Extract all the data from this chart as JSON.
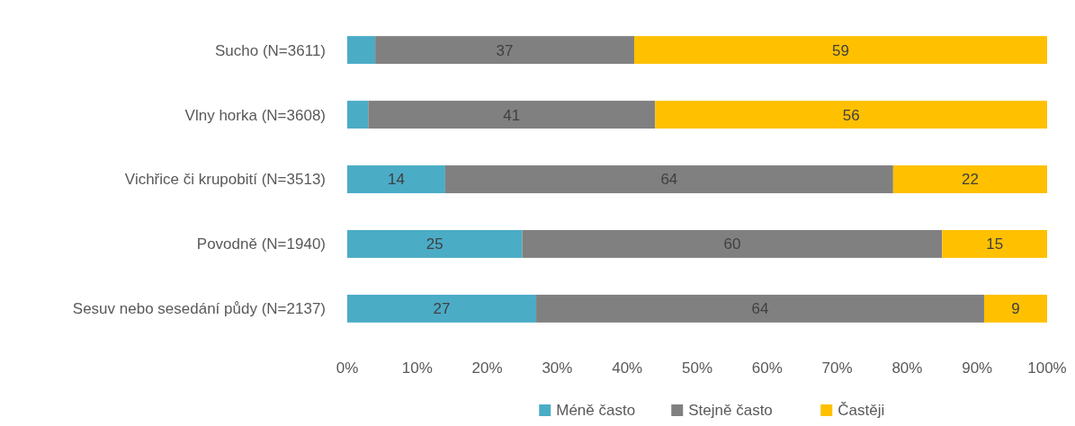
{
  "chart_data": {
    "type": "bar",
    "orientation": "horizontal",
    "stacked": true,
    "categories": [
      "Sucho (N=3611)",
      "Vlny horka (N=3608)",
      "Vichřice či krupobití (N=3513)",
      "Povodně (N=1940)",
      "Sesuv nebo sesedání půdy (N=2137)"
    ],
    "series": [
      {
        "name": "Méně často",
        "color": "#4bacc6",
        "values": [
          4,
          3,
          14,
          25,
          27
        ],
        "value_labels": [
          null,
          null,
          "14",
          "25",
          "27"
        ]
      },
      {
        "name": "Stejně často",
        "color": "#808080",
        "values": [
          37,
          41,
          64,
          60,
          64
        ],
        "value_labels": [
          "37",
          "41",
          "64",
          "60",
          "64"
        ]
      },
      {
        "name": "Častěji",
        "color": "#ffc000",
        "values": [
          59,
          56,
          22,
          15,
          9
        ],
        "value_labels": [
          "59",
          "56",
          "22",
          "15",
          "9"
        ]
      }
    ],
    "xlim": [
      0,
      100
    ],
    "xticks": [
      {
        "value": 0,
        "label": "0%"
      },
      {
        "value": 10,
        "label": "10%"
      },
      {
        "value": 20,
        "label": "20%"
      },
      {
        "value": 30,
        "label": "30%"
      },
      {
        "value": 40,
        "label": "40%"
      },
      {
        "value": 50,
        "label": "50%"
      },
      {
        "value": 60,
        "label": "60%"
      },
      {
        "value": 70,
        "label": "70%"
      },
      {
        "value": 80,
        "label": "80%"
      },
      {
        "value": 90,
        "label": "90%"
      },
      {
        "value": 100,
        "label": "100%"
      }
    ],
    "legend": "bottom",
    "grid": false
  }
}
